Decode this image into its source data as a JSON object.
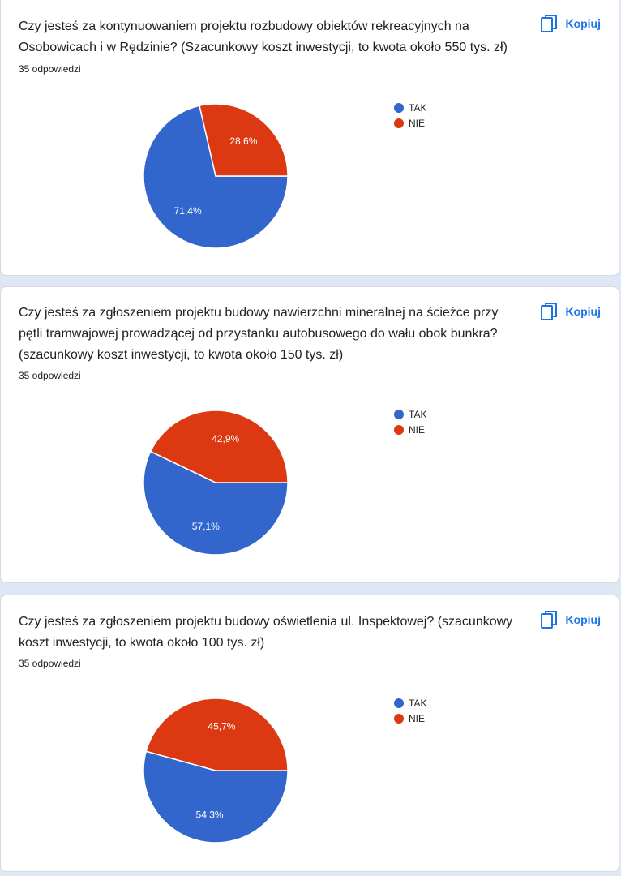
{
  "copy_label": "Kopiuj",
  "colors": {
    "tak": "#3366cc",
    "nie": "#dc3912",
    "accent": "#1a73e8"
  },
  "cards": [
    {
      "title": "Czy jesteś za kontynuowaniem projektu rozbudowy obiektów rekreacyjnych na Osobowicach i w Rędzinie? (Szacunkowy koszt inwestycji, to kwota około 550 tys. zł)",
      "responses": "35 odpowiedzi"
    },
    {
      "title": "Czy jesteś za zgłoszeniem projektu budowy nawierzchni mineralnej na ścieżce przy pętli tramwajowej prowadzącej od przystanku autobusowego do wału obok bunkra? (szacunkowy koszt inwestycji, to kwota około 150 tys. zł)",
      "responses": "35 odpowiedzi"
    },
    {
      "title": "Czy jesteś za zgłoszeniem projektu budowy oświetlenia ul. Inspektowej? (szacunkowy koszt inwestycji, to kwota około 100 tys. zł)",
      "responses": "35 odpowiedzi"
    }
  ],
  "chart_data": [
    {
      "type": "pie",
      "categories": [
        "TAK",
        "NIE"
      ],
      "values": [
        71.4,
        28.6
      ],
      "labels": [
        "71,4%",
        "28,6%"
      ],
      "legend": "right"
    },
    {
      "type": "pie",
      "categories": [
        "TAK",
        "NIE"
      ],
      "values": [
        57.1,
        42.9
      ],
      "labels": [
        "57,1%",
        "42,9%"
      ],
      "legend": "right"
    },
    {
      "type": "pie",
      "categories": [
        "TAK",
        "NIE"
      ],
      "values": [
        54.3,
        45.7
      ],
      "labels": [
        "54,3%",
        "45,7%"
      ],
      "legend": "right"
    }
  ]
}
